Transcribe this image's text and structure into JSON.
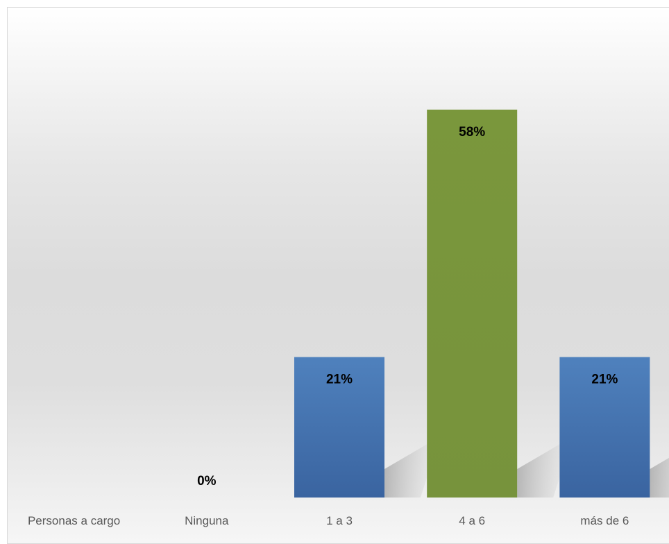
{
  "chart_data": {
    "type": "bar",
    "categories": [
      "Personas a cargo",
      "Ninguna",
      "1 a 3",
      "4 a 6",
      "más de 6"
    ],
    "values": [
      null,
      0,
      21,
      58,
      21
    ],
    "data_labels": [
      "",
      "0%",
      "21%",
      "58%",
      "21%"
    ],
    "title": "",
    "xlabel": "",
    "ylabel": "",
    "ylim": [
      0,
      58
    ],
    "grid": false,
    "legend": "none",
    "colors": [
      "#4a7ebb",
      "#4a7ebb",
      "#4a7ebb",
      "#77933c",
      "#4a7ebb"
    ]
  }
}
